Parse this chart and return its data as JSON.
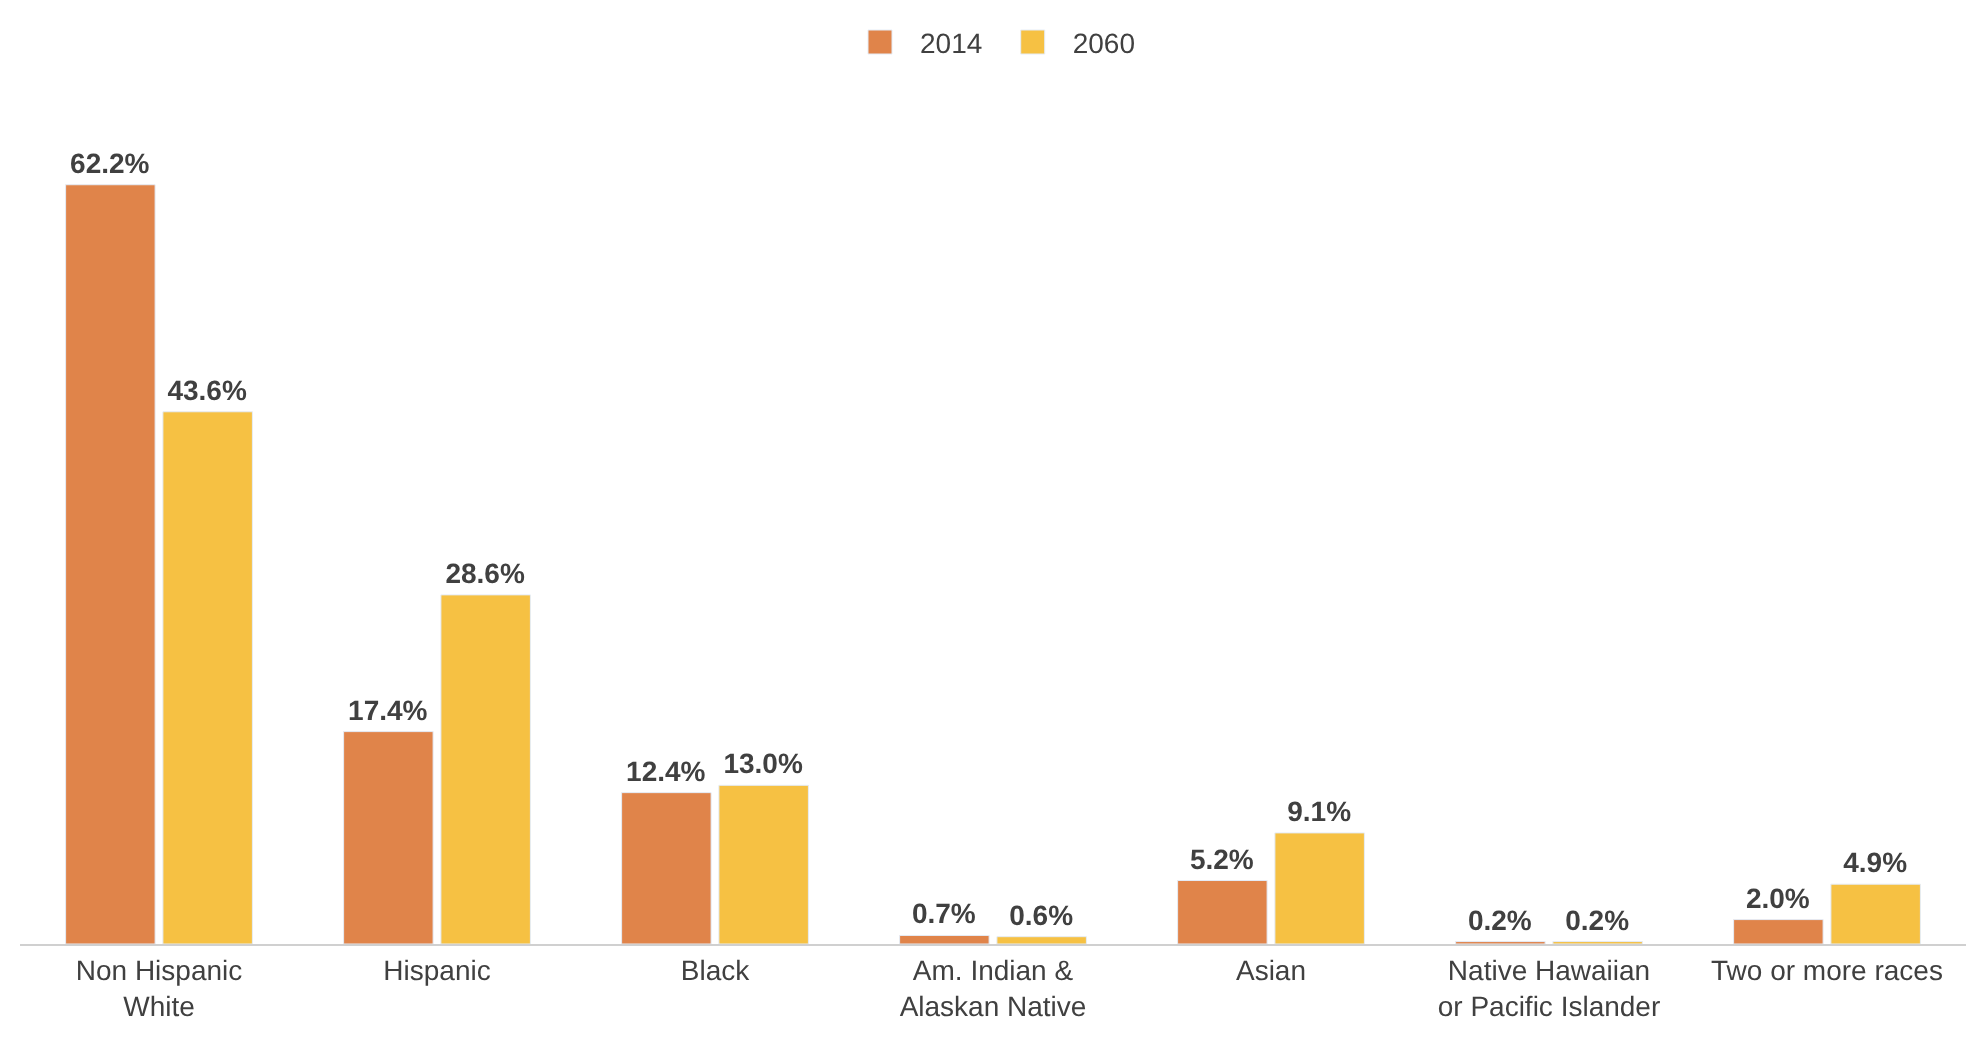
{
  "chart_data": {
    "type": "bar",
    "categories": [
      "Non Hispanic\nWhite",
      "Hispanic",
      "Black",
      "Am. Indian &\nAlaskan Native",
      "Asian",
      "Native Hawaiian\nor Pacific Islander",
      "Two or more races"
    ],
    "series": [
      {
        "name": "2014",
        "color": "#e0844a",
        "values": [
          62.2,
          17.4,
          12.4,
          0.7,
          5.2,
          0.2,
          2.0
        ],
        "value_labels": [
          "62.2%",
          "17.4%",
          "12.4%",
          "0.7%",
          "5.2%",
          "0.2%",
          "2.0%"
        ]
      },
      {
        "name": "2060",
        "color": "#f6c143",
        "values": [
          43.6,
          28.6,
          13.0,
          0.6,
          9.1,
          0.2,
          4.9
        ],
        "value_labels": [
          "43.6%",
          "28.6%",
          "13.0%",
          "0.6%",
          "9.1%",
          "0.2%",
          "4.9%"
        ]
      }
    ],
    "legend": "top"
  }
}
